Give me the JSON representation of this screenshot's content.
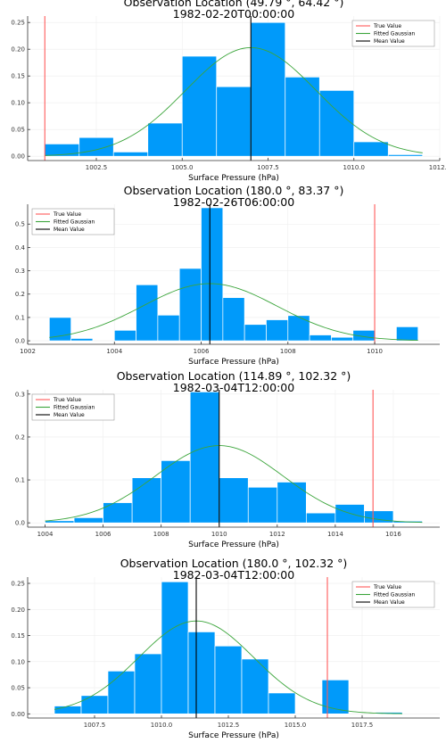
{
  "chart_data": [
    {
      "type": "histogram",
      "title": "Observation Location (49.79 °, 64.42 °)",
      "subtitle": "1982-02-20T00:00:00",
      "xlabel": "Surface Pressure (hPa)",
      "ylabel": "",
      "xlim": [
        1000.5,
        1012.5
      ],
      "ylim": [
        -0.008,
        0.262
      ],
      "xticks": [
        1002.5,
        1005.0,
        1007.5,
        1010.0,
        1012.5
      ],
      "xtick_labels": [
        "1002.5",
        "1005.0",
        "1007.5",
        "1010.0",
        "1012.5"
      ],
      "yticks": [
        0.0,
        0.05,
        0.1,
        0.15,
        0.2,
        0.25
      ],
      "ytick_labels": [
        "0.00",
        "0.05",
        "0.10",
        "0.15",
        "0.20",
        "0.25"
      ],
      "bins": [
        {
          "x0": 1001.0,
          "x1": 1002.0,
          "value": 0.023
        },
        {
          "x0": 1002.0,
          "x1": 1003.0,
          "value": 0.035
        },
        {
          "x0": 1003.0,
          "x1": 1004.0,
          "value": 0.008
        },
        {
          "x0": 1004.0,
          "x1": 1005.0,
          "value": 0.062
        },
        {
          "x0": 1005.0,
          "x1": 1006.0,
          "value": 0.187
        },
        {
          "x0": 1006.0,
          "x1": 1007.0,
          "value": 0.13
        },
        {
          "x0": 1007.0,
          "x1": 1008.0,
          "value": 0.25
        },
        {
          "x0": 1008.0,
          "x1": 1009.0,
          "value": 0.148
        },
        {
          "x0": 1009.0,
          "x1": 1010.0,
          "value": 0.123
        },
        {
          "x0": 1010.0,
          "x1": 1011.0,
          "value": 0.027
        },
        {
          "x0": 1011.0,
          "x1": 1012.0,
          "value": 0.003
        }
      ],
      "gaussian": {
        "mean": 1007.0,
        "sd": 1.9,
        "peak": 0.203,
        "range": [
          1001.0,
          1012.0
        ]
      },
      "true_value": 1001.0,
      "mean_value": 1007.0,
      "legend": {
        "position": "top-right",
        "entries": [
          "True Value",
          "Fitted Gaussian",
          "Mean Value"
        ]
      }
    },
    {
      "type": "histogram",
      "title": "Observation Location (180.0 °, 83.37 °)",
      "subtitle": "1982-02-26T06:00:00",
      "xlabel": "Surface Pressure (hPa)",
      "ylabel": "",
      "xlim": [
        1002.0,
        1011.5
      ],
      "ylim": [
        -0.015,
        0.585
      ],
      "xticks": [
        1002,
        1004,
        1006,
        1008,
        1010
      ],
      "xtick_labels": [
        "1002",
        "1004",
        "1006",
        "1008",
        "1010"
      ],
      "yticks": [
        0.0,
        0.1,
        0.2,
        0.3,
        0.4,
        0.5
      ],
      "ytick_labels": [
        "0.0",
        "0.1",
        "0.2",
        "0.3",
        "0.4",
        "0.5"
      ],
      "bins": [
        {
          "x0": 1002.5,
          "x1": 1003.0,
          "value": 0.1
        },
        {
          "x0": 1003.0,
          "x1": 1003.5,
          "value": 0.01
        },
        {
          "x0": 1003.5,
          "x1": 1004.0,
          "value": 0.0
        },
        {
          "x0": 1004.0,
          "x1": 1004.5,
          "value": 0.045
        },
        {
          "x0": 1004.5,
          "x1": 1005.0,
          "value": 0.24
        },
        {
          "x0": 1005.0,
          "x1": 1005.5,
          "value": 0.11
        },
        {
          "x0": 1005.5,
          "x1": 1006.0,
          "value": 0.31
        },
        {
          "x0": 1006.0,
          "x1": 1006.5,
          "value": 0.57
        },
        {
          "x0": 1006.5,
          "x1": 1007.0,
          "value": 0.185
        },
        {
          "x0": 1007.0,
          "x1": 1007.5,
          "value": 0.07
        },
        {
          "x0": 1007.5,
          "x1": 1008.0,
          "value": 0.09
        },
        {
          "x0": 1008.0,
          "x1": 1008.5,
          "value": 0.108
        },
        {
          "x0": 1008.5,
          "x1": 1009.0,
          "value": 0.025
        },
        {
          "x0": 1009.0,
          "x1": 1009.5,
          "value": 0.015
        },
        {
          "x0": 1009.5,
          "x1": 1010.0,
          "value": 0.045
        },
        {
          "x0": 1010.0,
          "x1": 1010.5,
          "value": 0.0
        },
        {
          "x0": 1010.5,
          "x1": 1011.0,
          "value": 0.06
        }
      ],
      "gaussian": {
        "mean": 1006.2,
        "sd": 1.55,
        "peak": 0.245,
        "range": [
          1002.5,
          1011.0
        ]
      },
      "true_value": 1010.0,
      "mean_value": 1006.2,
      "legend": {
        "position": "top-left",
        "entries": [
          "True Value",
          "Fitted Gaussian",
          "Mean Value"
        ]
      }
    },
    {
      "type": "histogram",
      "title": "Observation Location (114.89 °, 102.32 °)",
      "subtitle": "1982-03-04T12:00:00",
      "xlabel": "Surface Pressure (hPa)",
      "ylabel": "",
      "xlim": [
        1003.4,
        1017.6
      ],
      "ylim": [
        -0.01,
        0.31
      ],
      "xticks": [
        1004,
        1006,
        1008,
        1010,
        1012,
        1014,
        1016
      ],
      "xtick_labels": [
        "1004",
        "1006",
        "1008",
        "1010",
        "1012",
        "1014",
        "1016"
      ],
      "yticks": [
        0.0,
        0.1,
        0.2,
        0.3
      ],
      "ytick_labels": [
        "0.0",
        "0.1",
        "0.2",
        "0.3"
      ],
      "bins": [
        {
          "x0": 1004.0,
          "x1": 1005.0,
          "value": 0.005
        },
        {
          "x0": 1005.0,
          "x1": 1006.0,
          "value": 0.012
        },
        {
          "x0": 1006.0,
          "x1": 1007.0,
          "value": 0.047
        },
        {
          "x0": 1007.0,
          "x1": 1008.0,
          "value": 0.105
        },
        {
          "x0": 1008.0,
          "x1": 1009.0,
          "value": 0.145
        },
        {
          "x0": 1009.0,
          "x1": 1010.0,
          "value": 0.305
        },
        {
          "x0": 1010.0,
          "x1": 1011.0,
          "value": 0.105
        },
        {
          "x0": 1011.0,
          "x1": 1012.0,
          "value": 0.083
        },
        {
          "x0": 1012.0,
          "x1": 1013.0,
          "value": 0.095
        },
        {
          "x0": 1013.0,
          "x1": 1014.0,
          "value": 0.023
        },
        {
          "x0": 1014.0,
          "x1": 1015.0,
          "value": 0.043
        },
        {
          "x0": 1015.0,
          "x1": 1016.0,
          "value": 0.028
        },
        {
          "x0": 1016.0,
          "x1": 1017.0,
          "value": 0.004
        }
      ],
      "gaussian": {
        "mean": 1010.0,
        "sd": 2.2,
        "peak": 0.18,
        "range": [
          1004.0,
          1017.0
        ]
      },
      "true_value": 1015.3,
      "mean_value": 1010.0,
      "legend": {
        "position": "top-left",
        "entries": [
          "True Value",
          "Fitted Gaussian",
          "Mean Value"
        ]
      }
    },
    {
      "type": "histogram",
      "title": "Observation Location (180.0 °, 102.32 °)",
      "subtitle": "1982-03-04T12:00:00",
      "xlabel": "Surface Pressure (hPa)",
      "ylabel": "",
      "xlim": [
        1005.0,
        1020.4
      ],
      "ylim": [
        -0.008,
        0.262
      ],
      "xticks": [
        1007.5,
        1010.0,
        1012.5,
        1015.0,
        1017.5
      ],
      "xtick_labels": [
        "1007.5",
        "1010.0",
        "1012.5",
        "1015.0",
        "1017.5"
      ],
      "yticks": [
        0.0,
        0.05,
        0.1,
        0.15,
        0.2,
        0.25
      ],
      "ytick_labels": [
        "0.00",
        "0.05",
        "0.10",
        "0.15",
        "0.20",
        "0.25"
      ],
      "bins": [
        {
          "x0": 1006.0,
          "x1": 1007.0,
          "value": 0.015
        },
        {
          "x0": 1007.0,
          "x1": 1008.0,
          "value": 0.035
        },
        {
          "x0": 1008.0,
          "x1": 1009.0,
          "value": 0.082
        },
        {
          "x0": 1009.0,
          "x1": 1010.0,
          "value": 0.115
        },
        {
          "x0": 1010.0,
          "x1": 1011.0,
          "value": 0.253
        },
        {
          "x0": 1011.0,
          "x1": 1012.0,
          "value": 0.157
        },
        {
          "x0": 1012.0,
          "x1": 1013.0,
          "value": 0.13
        },
        {
          "x0": 1013.0,
          "x1": 1014.0,
          "value": 0.105
        },
        {
          "x0": 1014.0,
          "x1": 1015.0,
          "value": 0.04
        },
        {
          "x0": 1015.0,
          "x1": 1016.0,
          "value": 0.0
        },
        {
          "x0": 1016.0,
          "x1": 1017.0,
          "value": 0.065
        },
        {
          "x0": 1017.0,
          "x1": 1018.0,
          "value": 0.0
        },
        {
          "x0": 1018.0,
          "x1": 1019.0,
          "value": 0.003
        }
      ],
      "gaussian": {
        "mean": 1011.3,
        "sd": 2.15,
        "peak": 0.178,
        "range": [
          1006.0,
          1019.0
        ]
      },
      "true_value": 1016.2,
      "mean_value": 1011.3,
      "legend": {
        "position": "top-right",
        "entries": [
          "True Value",
          "Fitted Gaussian",
          "Mean Value"
        ]
      }
    }
  ],
  "colors": {
    "bar": "#009AFA",
    "bar_edge": "#FFFFFF",
    "true_value": "#FF5A5A",
    "gaussian": "#3BA53B",
    "mean": "#000000",
    "axis": "#333333",
    "grid": "#EEEEEE"
  }
}
